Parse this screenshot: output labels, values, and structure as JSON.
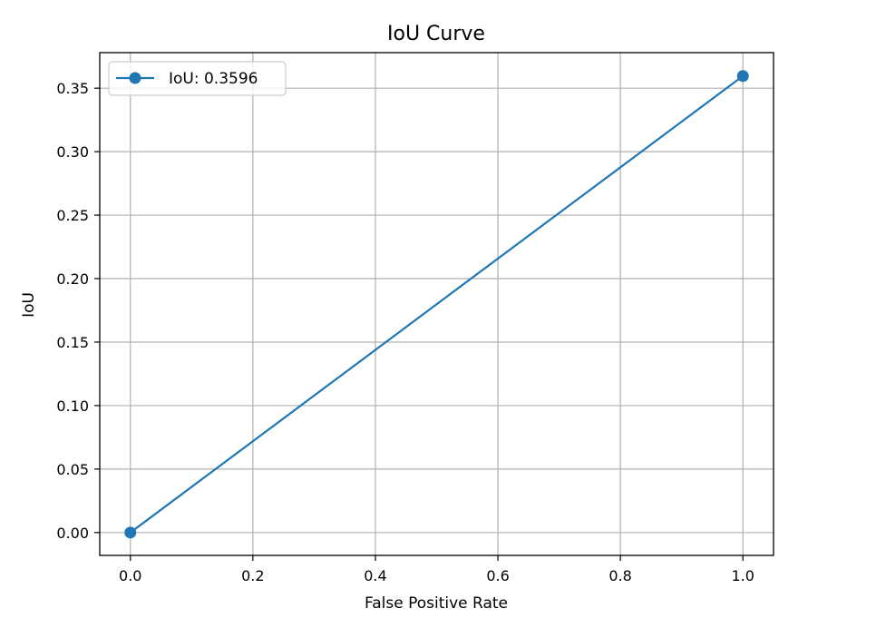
{
  "chart_data": {
    "type": "line",
    "title": "IoU Curve",
    "xlabel": "False Positive Rate",
    "ylabel": "IoU",
    "xlim": [
      -0.05,
      1.05
    ],
    "ylim": [
      -0.018,
      0.378
    ],
    "xticks": [
      0.0,
      0.2,
      0.4,
      0.6,
      0.8,
      1.0
    ],
    "xtick_labels": [
      "0.0",
      "0.2",
      "0.4",
      "0.6",
      "0.8",
      "1.0"
    ],
    "yticks": [
      0.0,
      0.05,
      0.1,
      0.15,
      0.2,
      0.25,
      0.3,
      0.35
    ],
    "ytick_labels": [
      "0.00",
      "0.05",
      "0.10",
      "0.15",
      "0.20",
      "0.25",
      "0.30",
      "0.35"
    ],
    "grid": true,
    "legend_position": "upper-left",
    "series": [
      {
        "name": "IoU: 0.3596",
        "color": "#1f77b4",
        "marker": "circle",
        "x": [
          0.0,
          1.0
        ],
        "y": [
          0.0,
          0.3596
        ]
      }
    ]
  }
}
